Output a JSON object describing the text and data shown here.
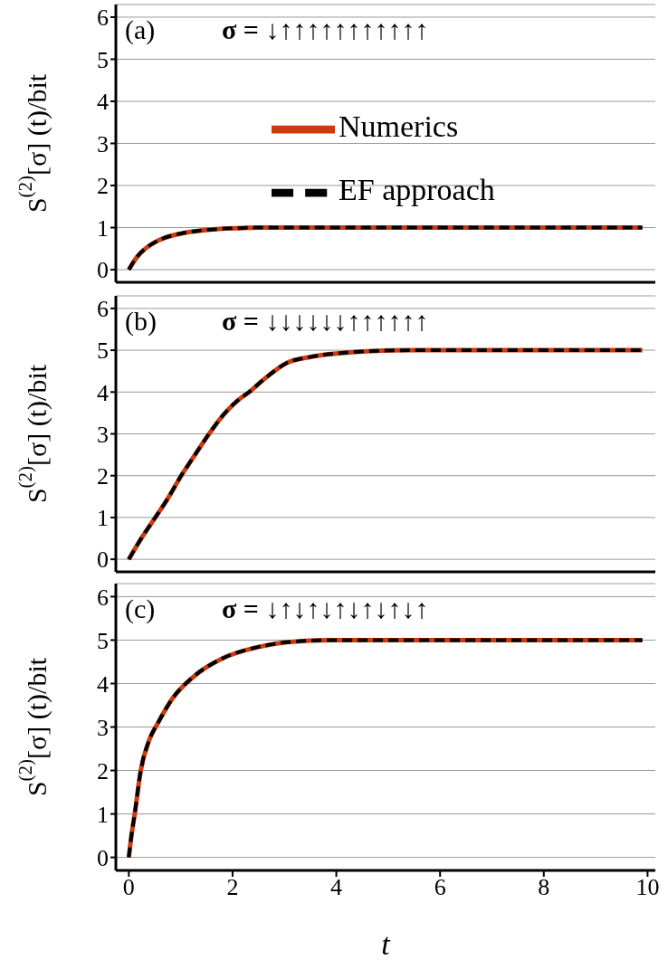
{
  "chart_data": [
    {
      "type": "line",
      "annotations": [
        "(a)",
        "σ = ↓↑↑↑↑↑↑↑↑↑↑↑"
      ],
      "ylabel": "S$^{(2)}$[σ] (t)/bit",
      "x": [
        0,
        0.1,
        0.17,
        0.35,
        0.5,
        0.7,
        1.05,
        1.4,
        1.75,
        2.2,
        2.5,
        3,
        4,
        6,
        8,
        9.9
      ],
      "series": [
        {
          "name": "Numerics",
          "color": "#cc3a0e",
          "line_style": "solid",
          "values": [
            0,
            0.2,
            0.32,
            0.53,
            0.65,
            0.76,
            0.87,
            0.93,
            0.97,
            0.99,
            1,
            1,
            1,
            1,
            1,
            1
          ]
        },
        {
          "name": "EF approach",
          "color": "#000000",
          "line_style": "dashed",
          "values": [
            0,
            0.2,
            0.32,
            0.53,
            0.65,
            0.76,
            0.87,
            0.93,
            0.97,
            0.99,
            1,
            1,
            1,
            1,
            1,
            1
          ]
        }
      ],
      "xlim": [
        -0.25,
        10.15
      ],
      "xticks": [
        0,
        2,
        4,
        6,
        8,
        10
      ],
      "ylim": [
        -0.3,
        6.3
      ],
      "yticks": [
        0,
        1,
        2,
        3,
        4,
        5,
        6
      ],
      "grid": "y",
      "legend": "center",
      "tick_labels": "y"
    },
    {
      "type": "line",
      "annotations": [
        "(b)",
        "σ = ↓↓↓↓↓↓↑↑↑↑↑↑"
      ],
      "ylabel": "S$^{(2)}$[σ] (t)/bit",
      "x": [
        0,
        0.25,
        0.51,
        0.75,
        1.02,
        1.25,
        1.53,
        1.8,
        2.1,
        2.32,
        2.6,
        3.05,
        3.5,
        3.9,
        4.5,
        5.5,
        7,
        9.9
      ],
      "series": [
        {
          "color": "#cc3a0e",
          "line_style": "solid",
          "values": [
            0,
            0.52,
            1.0,
            1.45,
            2.02,
            2.45,
            2.97,
            3.42,
            3.8,
            4.0,
            4.3,
            4.7,
            4.84,
            4.91,
            4.97,
            5,
            5,
            5
          ]
        },
        {
          "color": "#000000",
          "line_style": "dashed",
          "values": [
            0,
            0.52,
            1.0,
            1.45,
            2.02,
            2.45,
            2.97,
            3.42,
            3.8,
            4.0,
            4.3,
            4.7,
            4.84,
            4.91,
            4.97,
            5,
            5,
            5
          ]
        }
      ],
      "xlim": [
        -0.25,
        10.15
      ],
      "xticks": [
        0,
        2,
        4,
        6,
        8,
        10
      ],
      "ylim": [
        -0.3,
        6.3
      ],
      "yticks": [
        0,
        1,
        2,
        3,
        4,
        5,
        6
      ],
      "grid": "y",
      "tick_labels": "y"
    },
    {
      "type": "line",
      "annotations": [
        "(c)",
        "σ = ↓↑↓↑↓↑↓↑↓↑↓↑"
      ],
      "xlabel": "t",
      "ylabel": "S$^{(2)}$[σ] (t)/bit",
      "x": [
        0,
        0.05,
        0.11,
        0.23,
        0.4,
        0.56,
        0.85,
        1.24,
        1.81,
        2.49,
        3.05,
        3.9,
        5,
        7,
        9.9
      ],
      "series": [
        {
          "color": "#cc3a0e",
          "line_style": "solid",
          "values": [
            0,
            0.5,
            0.97,
            2.0,
            2.72,
            3.09,
            3.67,
            4.15,
            4.58,
            4.84,
            4.95,
            5,
            5,
            5,
            5
          ]
        },
        {
          "color": "#000000",
          "line_style": "dashed",
          "values": [
            0,
            0.5,
            0.97,
            2.0,
            2.72,
            3.09,
            3.67,
            4.15,
            4.58,
            4.84,
            4.95,
            5,
            5,
            5,
            5
          ]
        }
      ],
      "xlim": [
        -0.25,
        10.15
      ],
      "xticks": [
        0,
        2,
        4,
        6,
        8,
        10
      ],
      "ylim": [
        -0.3,
        6.3
      ],
      "yticks": [
        0,
        1,
        2,
        3,
        4,
        5,
        6
      ],
      "grid": "y"
    }
  ]
}
